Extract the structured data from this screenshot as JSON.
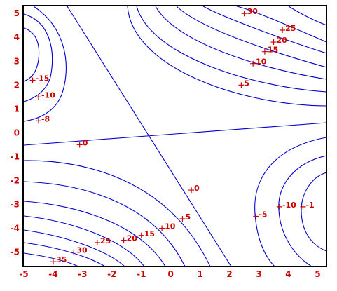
{
  "chart_data": {
    "type": "contour",
    "x_ticks": [
      "-5",
      "-4",
      "-3",
      "-2",
      "-1",
      "0",
      "1",
      "2",
      "3",
      "4",
      "5"
    ],
    "y_ticks": [
      "5",
      "4",
      "3",
      "2",
      "1",
      "0",
      "-1",
      "-2",
      "-3",
      "-4",
      "-5"
    ],
    "xlim": [
      -5,
      5.3
    ],
    "ylim": [
      -5.6,
      5.3
    ],
    "grid": false,
    "colors": {
      "frame": "#000000",
      "contour": "#0000cc",
      "label": "#cc0000",
      "tick_label": "#cc0000"
    },
    "contour_labels": [
      {
        "text": "30",
        "x": 2.5,
        "y": 5.0
      },
      {
        "text": "25",
        "x": 3.8,
        "y": 4.3
      },
      {
        "text": "20",
        "x": 3.5,
        "y": 3.8
      },
      {
        "text": "15",
        "x": 3.2,
        "y": 3.4
      },
      {
        "text": "10",
        "x": 2.8,
        "y": 2.9
      },
      {
        "text": "5",
        "x": 2.4,
        "y": 2.0
      },
      {
        "text": "-15",
        "x": -4.7,
        "y": 2.2
      },
      {
        "text": "-10",
        "x": -4.5,
        "y": 1.5
      },
      {
        "text": "-8",
        "x": -4.5,
        "y": 0.5
      },
      {
        "text": "0",
        "x": -3.1,
        "y": -0.5
      },
      {
        "text": "0",
        "x": 0.7,
        "y": -2.4
      },
      {
        "text": "5",
        "x": 0.4,
        "y": -3.6
      },
      {
        "text": "10",
        "x": -0.3,
        "y": -4.0
      },
      {
        "text": "15",
        "x": -1.0,
        "y": -4.3
      },
      {
        "text": "20",
        "x": -1.6,
        "y": -4.5
      },
      {
        "text": "25",
        "x": -2.5,
        "y": -4.6
      },
      {
        "text": "30",
        "x": -3.3,
        "y": -5.0
      },
      {
        "text": "35",
        "x": -4.0,
        "y": -5.4
      },
      {
        "text": "-5",
        "x": 2.9,
        "y": -3.5
      },
      {
        "text": "-10",
        "x": 3.7,
        "y": -3.1
      },
      {
        "text": "-1",
        "x": 4.5,
        "y": -3.1
      }
    ]
  }
}
